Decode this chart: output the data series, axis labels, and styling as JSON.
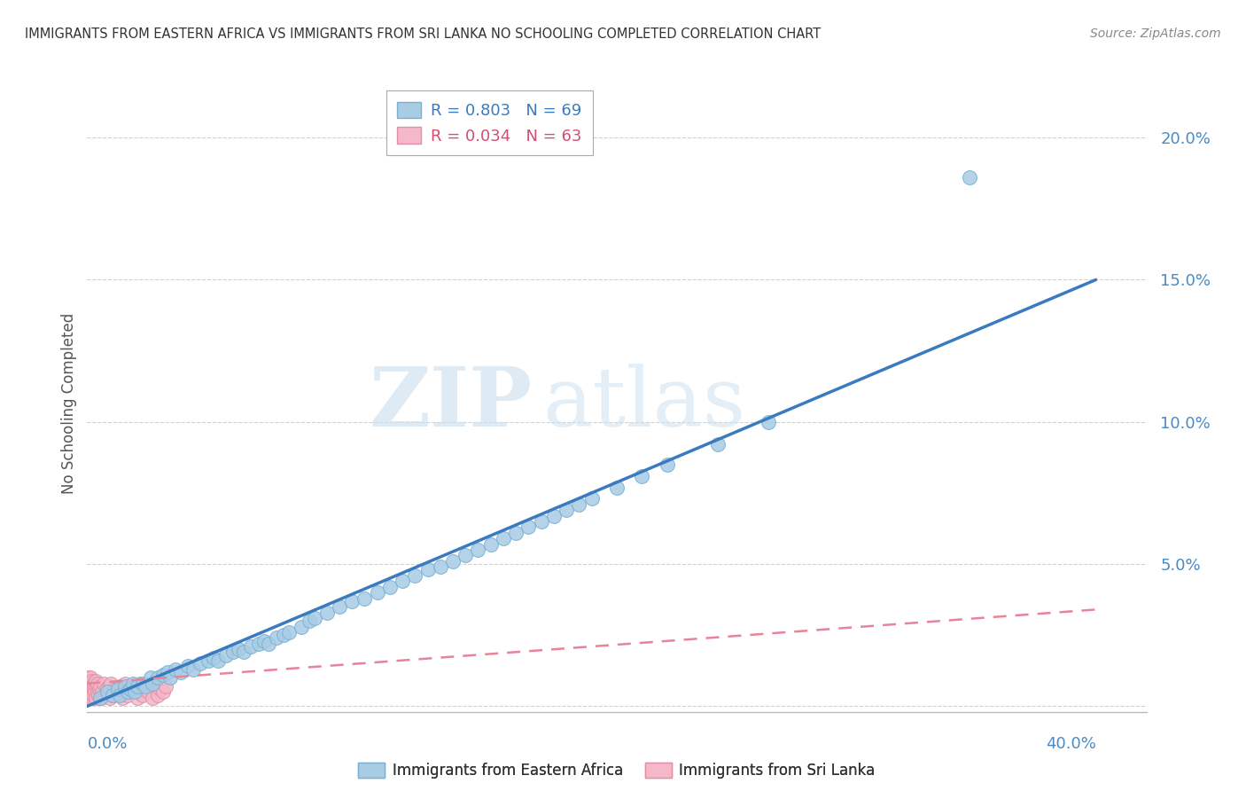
{
  "title": "IMMIGRANTS FROM EASTERN AFRICA VS IMMIGRANTS FROM SRI LANKA NO SCHOOLING COMPLETED CORRELATION CHART",
  "source": "Source: ZipAtlas.com",
  "ylabel": "No Schooling Completed",
  "ytick_vals": [
    0.0,
    0.05,
    0.1,
    0.15,
    0.2
  ],
  "ytick_labels": [
    "",
    "5.0%",
    "10.0%",
    "15.0%",
    "20.0%"
  ],
  "xlim": [
    0.0,
    0.42
  ],
  "ylim": [
    -0.002,
    0.215
  ],
  "legend_r1": "R = 0.803",
  "legend_n1": "N = 69",
  "legend_r2": "R = 0.034",
  "legend_n2": "N = 63",
  "color_eastern_africa": "#a8cce4",
  "color_sri_lanka": "#f4b8c8",
  "color_line_eastern_africa": "#3a7bbf",
  "color_line_sri_lanka": "#e8839a",
  "watermark_zip": "ZIP",
  "watermark_atlas": "atlas",
  "ea_line_x0": 0.0,
  "ea_line_y0": 0.0,
  "ea_line_x1": 0.4,
  "ea_line_y1": 0.15,
  "sl_line_x0": 0.0,
  "sl_line_y0": 0.008,
  "sl_line_x1": 0.4,
  "sl_line_y1": 0.034,
  "ea_points_x": [
    0.005,
    0.008,
    0.01,
    0.012,
    0.013,
    0.015,
    0.016,
    0.017,
    0.018,
    0.019,
    0.02,
    0.022,
    0.023,
    0.025,
    0.026,
    0.028,
    0.03,
    0.032,
    0.033,
    0.035,
    0.037,
    0.04,
    0.042,
    0.045,
    0.048,
    0.05,
    0.052,
    0.055,
    0.058,
    0.06,
    0.062,
    0.065,
    0.068,
    0.07,
    0.072,
    0.075,
    0.078,
    0.08,
    0.085,
    0.088,
    0.09,
    0.095,
    0.1,
    0.105,
    0.11,
    0.115,
    0.12,
    0.125,
    0.13,
    0.135,
    0.14,
    0.145,
    0.15,
    0.155,
    0.16,
    0.165,
    0.17,
    0.175,
    0.18,
    0.185,
    0.19,
    0.195,
    0.2,
    0.21,
    0.22,
    0.23,
    0.25,
    0.27,
    0.35
  ],
  "ea_points_y": [
    0.003,
    0.005,
    0.004,
    0.006,
    0.004,
    0.007,
    0.005,
    0.006,
    0.008,
    0.005,
    0.007,
    0.008,
    0.007,
    0.01,
    0.008,
    0.01,
    0.011,
    0.012,
    0.01,
    0.013,
    0.012,
    0.014,
    0.013,
    0.015,
    0.016,
    0.017,
    0.016,
    0.018,
    0.019,
    0.02,
    0.019,
    0.021,
    0.022,
    0.023,
    0.022,
    0.024,
    0.025,
    0.026,
    0.028,
    0.03,
    0.031,
    0.033,
    0.035,
    0.037,
    0.038,
    0.04,
    0.042,
    0.044,
    0.046,
    0.048,
    0.049,
    0.051,
    0.053,
    0.055,
    0.057,
    0.059,
    0.061,
    0.063,
    0.065,
    0.067,
    0.069,
    0.071,
    0.073,
    0.077,
    0.081,
    0.085,
    0.092,
    0.1,
    0.186
  ],
  "sl_points_x": [
    0.0002,
    0.0003,
    0.0004,
    0.0005,
    0.0006,
    0.0007,
    0.0008,
    0.0009,
    0.001,
    0.0011,
    0.0012,
    0.0013,
    0.0014,
    0.0015,
    0.0016,
    0.0017,
    0.0018,
    0.0019,
    0.002,
    0.0022,
    0.0023,
    0.0025,
    0.0027,
    0.003,
    0.0032,
    0.0035,
    0.0038,
    0.004,
    0.0042,
    0.0045,
    0.0048,
    0.005,
    0.0055,
    0.006,
    0.0065,
    0.007,
    0.0075,
    0.008,
    0.0085,
    0.009,
    0.0095,
    0.01,
    0.011,
    0.012,
    0.013,
    0.014,
    0.015,
    0.016,
    0.017,
    0.018,
    0.019,
    0.02,
    0.021,
    0.022,
    0.023,
    0.024,
    0.025,
    0.026,
    0.027,
    0.028,
    0.029,
    0.03,
    0.031
  ],
  "sl_points_y": [
    0.005,
    0.008,
    0.003,
    0.01,
    0.006,
    0.004,
    0.007,
    0.009,
    0.005,
    0.008,
    0.003,
    0.007,
    0.01,
    0.004,
    0.006,
    0.008,
    0.003,
    0.009,
    0.005,
    0.007,
    0.004,
    0.008,
    0.006,
    0.005,
    0.009,
    0.003,
    0.007,
    0.005,
    0.008,
    0.004,
    0.006,
    0.007,
    0.003,
    0.005,
    0.008,
    0.004,
    0.006,
    0.005,
    0.007,
    0.003,
    0.008,
    0.004,
    0.006,
    0.005,
    0.007,
    0.003,
    0.008,
    0.004,
    0.006,
    0.005,
    0.007,
    0.003,
    0.008,
    0.004,
    0.006,
    0.005,
    0.007,
    0.003,
    0.008,
    0.004,
    0.006,
    0.005,
    0.007
  ]
}
